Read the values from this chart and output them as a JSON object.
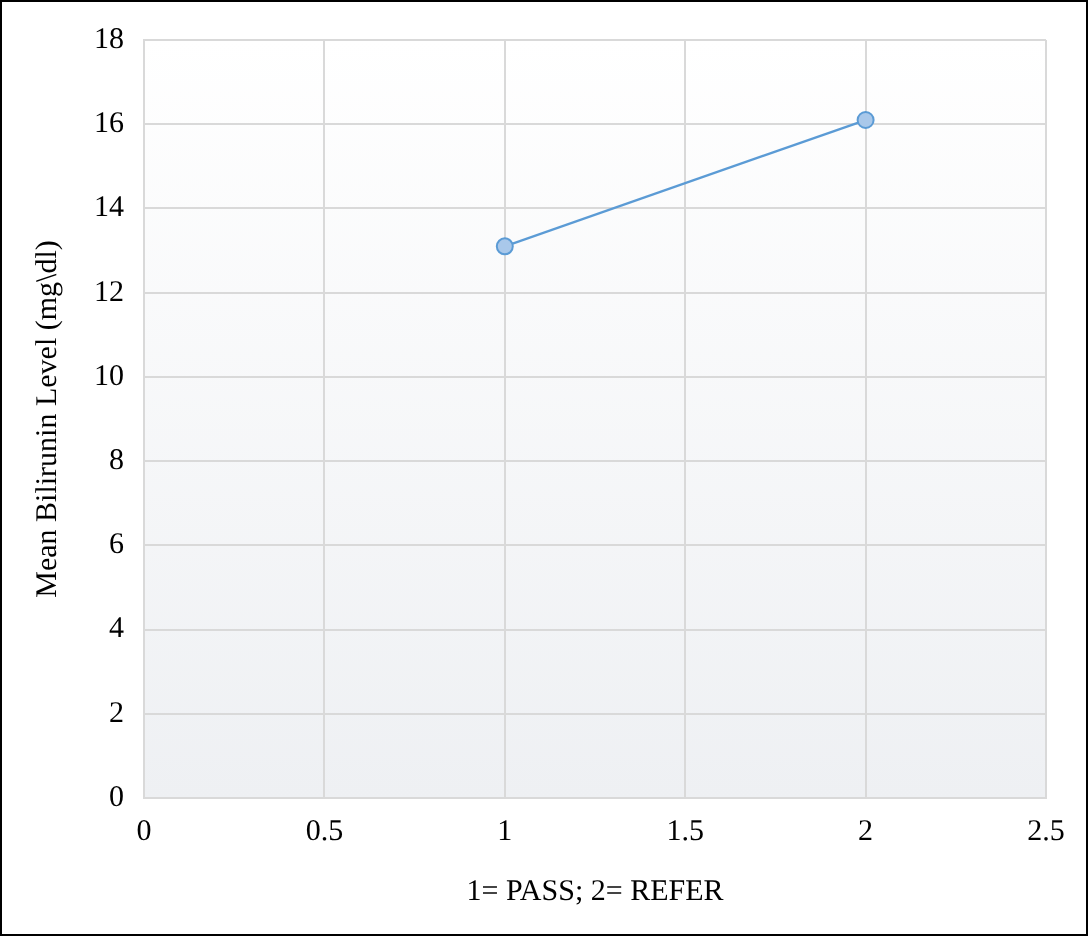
{
  "chart_data": {
    "type": "line",
    "xlabel": "1= PASS; 2= REFER",
    "ylabel": "Mean Bilirunin Level (mg\\dl)",
    "x": [
      1,
      2
    ],
    "series": [
      {
        "color": "#5b9bd5",
        "values": [
          13.1,
          16.1
        ]
      }
    ],
    "xlim": [
      0,
      2.5
    ],
    "xticks": [
      0,
      0.5,
      1,
      1.5,
      2,
      2.5
    ],
    "ylim": [
      0,
      18
    ],
    "yticks": [
      0,
      2,
      4,
      6,
      8,
      10,
      12,
      14,
      16,
      18
    ],
    "grid": true,
    "legend": false,
    "marker": "circle",
    "line_style": "solid"
  }
}
